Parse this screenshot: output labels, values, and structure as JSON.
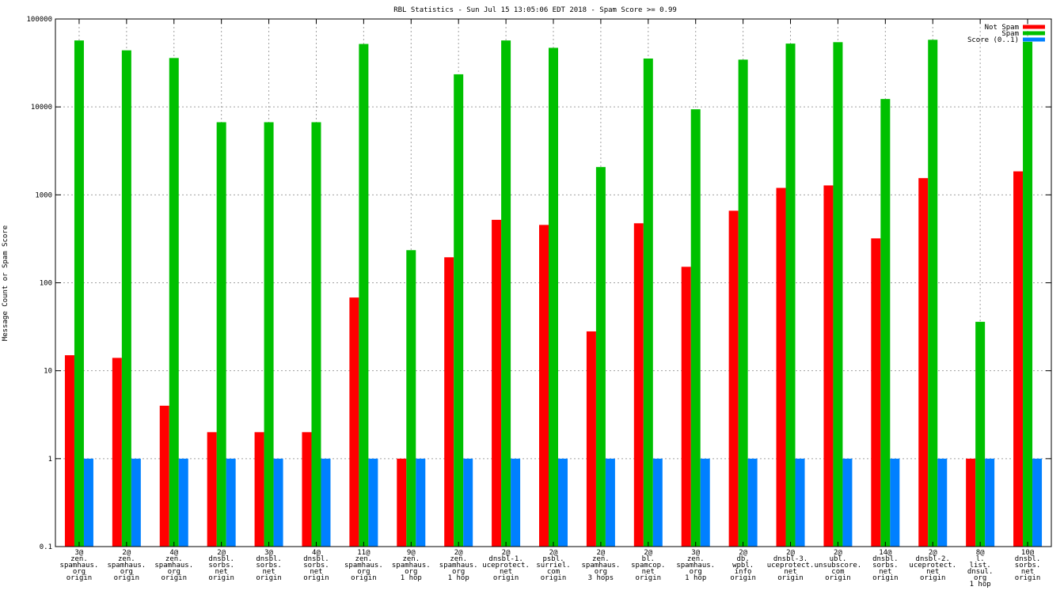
{
  "chart_data": {
    "type": "bar",
    "title": "RBL Statistics - Sun Jul 15 13:05:06 EDT 2018 - Spam Score >= 0.99",
    "xlabel": "",
    "ylabel": "Message Count or Spam Score",
    "yscale": "log",
    "ylim": [
      0.1,
      100000
    ],
    "yticks": [
      "0.1",
      "1",
      "10",
      "100",
      "1000",
      "10000",
      "100000"
    ],
    "grid": true,
    "legend_position": "top-right",
    "categories": [
      [
        "3@",
        "zen.",
        "spamhaus.",
        "org",
        "origin"
      ],
      [
        "2@",
        "zen.",
        "spamhaus.",
        "org",
        "origin"
      ],
      [
        "4@",
        "zen.",
        "spamhaus.",
        "org",
        "origin"
      ],
      [
        "2@",
        "dnsbl.",
        "sorbs.",
        "net",
        "origin"
      ],
      [
        "3@",
        "dnsbl.",
        "sorbs.",
        "net",
        "origin"
      ],
      [
        "4@",
        "dnsbl.",
        "sorbs.",
        "net",
        "origin"
      ],
      [
        "11@",
        "zen.",
        "spamhaus.",
        "org",
        "origin"
      ],
      [
        "9@",
        "zen.",
        "spamhaus.",
        "org",
        "1 hop"
      ],
      [
        "2@",
        "zen.",
        "spamhaus.",
        "org",
        "1 hop"
      ],
      [
        "2@",
        "dnsbl-1.",
        "uceprotect.",
        "net",
        "origin"
      ],
      [
        "2@",
        "psbl.",
        "surriel.",
        "com",
        "origin"
      ],
      [
        "2@",
        "zen.",
        "spamhaus.",
        "org",
        "3 hops"
      ],
      [
        "2@",
        "bl.",
        "spamcop.",
        "net",
        "origin"
      ],
      [
        "3@",
        "zen.",
        "spamhaus.",
        "org",
        "1 hop"
      ],
      [
        "2@",
        "db.",
        "wpbl.",
        "info",
        "origin"
      ],
      [
        "2@",
        "dnsbl-3.",
        "uceprotect.",
        "net",
        "origin"
      ],
      [
        "2@",
        "ubl.",
        "unsubscore.",
        "com",
        "origin"
      ],
      [
        "14@",
        "dnsbl.",
        "sorbs.",
        "net",
        "origin"
      ],
      [
        "2@",
        "dnsbl-2.",
        "uceprotect.",
        "net",
        "origin"
      ],
      [
        "8@",
        "l.",
        "list.",
        "dnsul.",
        "org",
        "1 hop"
      ],
      [
        "10@",
        "dnsbl.",
        "sorbs.",
        "net",
        "origin"
      ]
    ],
    "series": [
      {
        "name": "Not Spam",
        "color": "#ff0000",
        "values": [
          15,
          14,
          4,
          2,
          2,
          2,
          68,
          1,
          195,
          520,
          455,
          28,
          475,
          152,
          660,
          1200,
          1280,
          320,
          1550,
          1,
          1850
        ]
      },
      {
        "name": "Spam",
        "color": "#00c000",
        "values": [
          57000,
          44000,
          36000,
          6700,
          6700,
          6700,
          52000,
          235,
          23500,
          57000,
          47000,
          2070,
          35500,
          9400,
          34500,
          52500,
          54500,
          12300,
          58000,
          36,
          55000
        ]
      },
      {
        "name": "Score (0..1)",
        "color": "#0080ff",
        "values": [
          1,
          1,
          1,
          1,
          1,
          1,
          1,
          1,
          1,
          1,
          1,
          1,
          1,
          1,
          1,
          1,
          1,
          1,
          1,
          1,
          1
        ]
      }
    ]
  }
}
